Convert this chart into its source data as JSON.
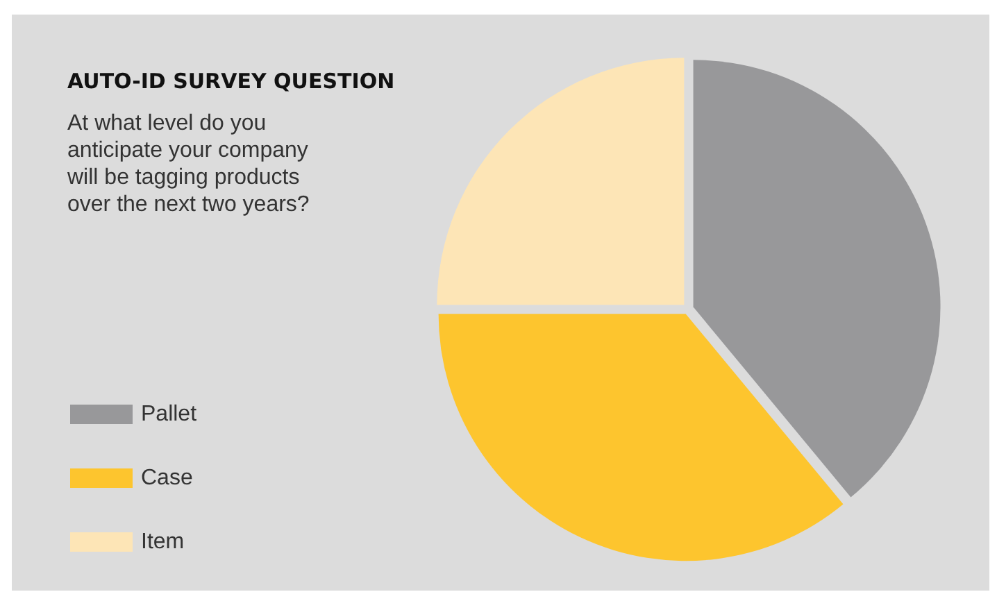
{
  "chart_data": {
    "type": "pie",
    "title": "AUTO-ID SURVEY QUESTION",
    "subtitle": "At what level do you anticipate your company will be tagging products over the next two years?",
    "categories": [
      "Pallet",
      "Case",
      "Item"
    ],
    "values": [
      39,
      36,
      25
    ],
    "colors": [
      "#98989a",
      "#fdc52e",
      "#fde5b6"
    ],
    "legend": "left"
  }
}
